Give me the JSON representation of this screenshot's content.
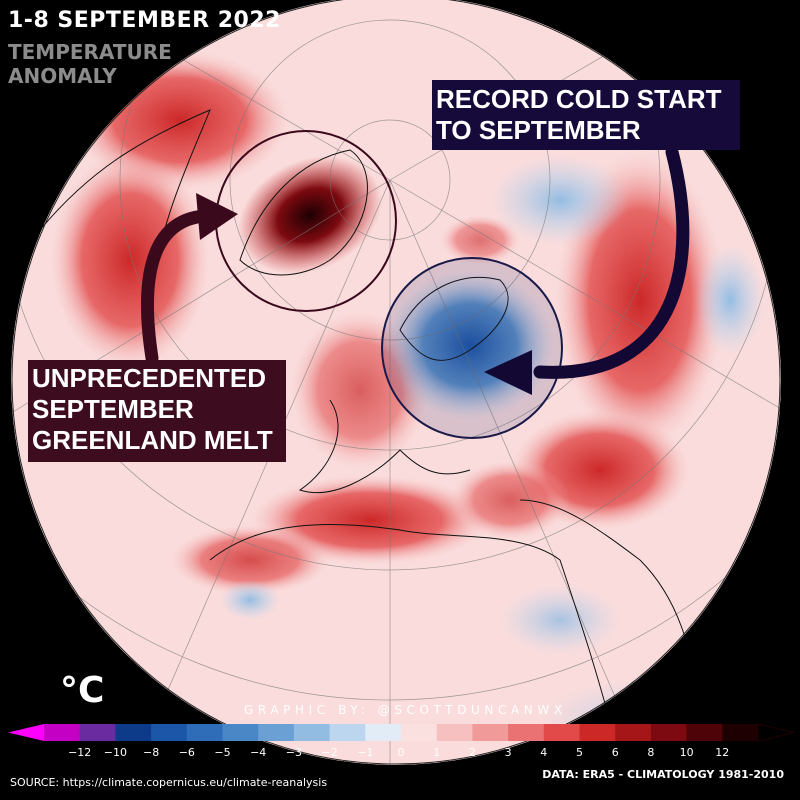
{
  "header": {
    "title": "1-8 SEPTEMBER 2022",
    "subtitle": "TEMPERATURE ANOMALY"
  },
  "callouts": {
    "cold": "RECORD COLD START TO SEPTEMBER",
    "melt": "UNPRECEDENTED SEPTEMBER GREENLAND MELT"
  },
  "legend": {
    "unit": "°C",
    "tick_labels": [
      "−12",
      "−10",
      "−8",
      "−6",
      "−5",
      "−4",
      "−3",
      "−2",
      "−1",
      "0",
      "1",
      "2",
      "3",
      "4",
      "5",
      "6",
      "8",
      "10",
      "12"
    ],
    "colors": [
      "#c400c4",
      "#6a2aa0",
      "#0e3a8a",
      "#1c56a8",
      "#2f6db8",
      "#4a87c6",
      "#6ba0d4",
      "#93bce2",
      "#bcd6ef",
      "#e2ecf6",
      "#fbe0e0",
      "#f6c0c0",
      "#f09a9a",
      "#ea7272",
      "#e24a4a",
      "#cc2828",
      "#a51618",
      "#7c0a10",
      "#4e0308",
      "#1e0003"
    ]
  },
  "footer": {
    "credit": "GRAPHIC BY: @SCOTTDUNCANWX",
    "source": "SOURCE: https://climate.copernicus.eu/climate-reanalysis",
    "data_note": "DATA: ERA5 - CLIMATOLOGY 1981-2010"
  },
  "colors": {
    "warm_strong": "#c8202a",
    "warm_light": "#f6c4c4",
    "cold_strong": "#2b6cb8",
    "cold_light": "#bcd6ef",
    "arrow_cold": "#120833",
    "arrow_melt": "#3a0a1c"
  }
}
